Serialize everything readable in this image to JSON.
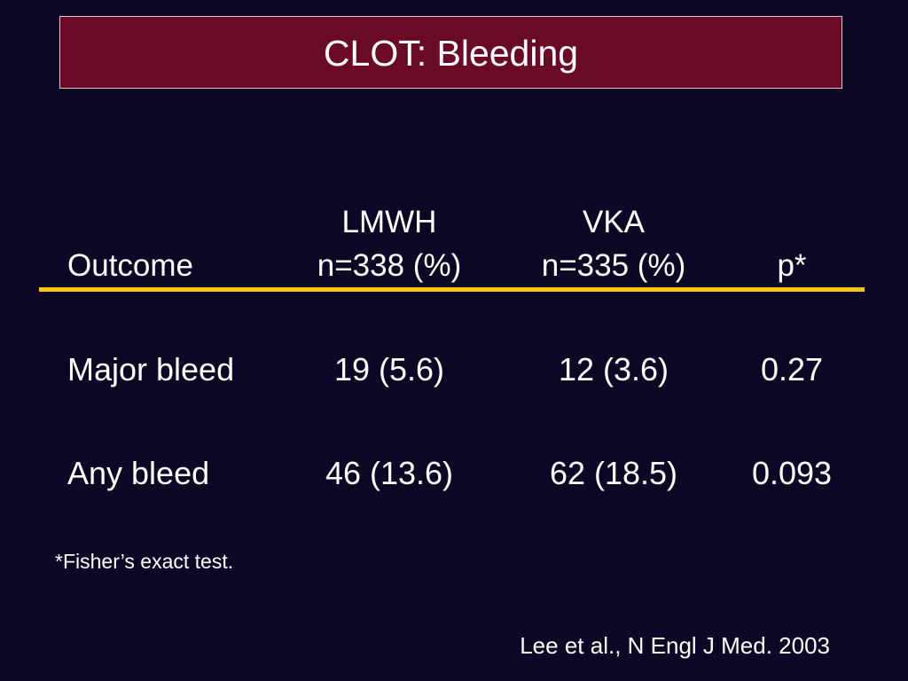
{
  "title": "CLOT: Bleeding",
  "table": {
    "headers": {
      "outcome": "Outcome",
      "lmwh_line1": "LMWH",
      "lmwh_line2": "n=338 (%)",
      "vka_line1": "VKA",
      "vka_line2": "n=335 (%)",
      "p": "p*"
    },
    "rows": [
      {
        "outcome": "Major bleed",
        "lmwh": "19 (5.6)",
        "vka": "12 (3.6)",
        "p": "0.27"
      },
      {
        "outcome": "Any bleed",
        "lmwh": "46 (13.6)",
        "vka": "62 (18.5)",
        "p": "0.093"
      }
    ]
  },
  "footnote": "*Fisher’s exact test.",
  "citation": "Lee et al., N Engl J Med. 2003",
  "colors": {
    "background": "#0b0724",
    "title_box": "#6a0a27",
    "rule": "#f6c511",
    "text": "#ffffff"
  }
}
